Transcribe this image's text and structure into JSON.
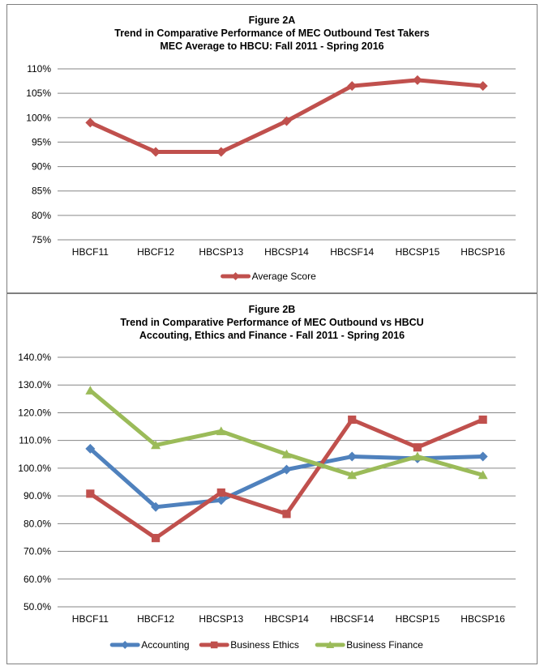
{
  "colors": {
    "average": "#C0504D",
    "accounting": "#4F81BD",
    "ethics": "#C0504D",
    "finance": "#9BBB59",
    "grid": "#868686"
  },
  "chart_data": [
    {
      "type": "line",
      "figure_label": "Figure 2A",
      "title": "Trend in Comparative Performance of MEC Outbound Test Takers",
      "subtitle": "MEC Average to HBCU: Fall 2011 - Spring 2016",
      "categories": [
        "HBCF11",
        "HBCF12",
        "HBCSP13",
        "HBCSP14",
        "HBCSF14",
        "HBCSP15",
        "HBCSP16"
      ],
      "ylim": [
        75,
        110
      ],
      "yticks": [
        "75%",
        "80%",
        "85%",
        "90%",
        "95%",
        "100%",
        "105%",
        "110%"
      ],
      "series": [
        {
          "name": "Average Score",
          "color": "#C0504D",
          "marker": "diamond",
          "values": [
            99,
            93,
            93,
            99.3,
            106.5,
            107.7,
            106.5
          ]
        }
      ],
      "legend": "bottom",
      "grid": true
    },
    {
      "type": "line",
      "figure_label": "Figure 2B",
      "title": "Trend in Comparative Performance of MEC Outbound vs HBCU",
      "subtitle": "Accouting, Ethics and Finance - Fall 2011 - Spring 2016",
      "categories": [
        "HBCF11",
        "HBCF12",
        "HBCSP13",
        "HBCSP14",
        "HBCSF14",
        "HBCSP15",
        "HBCSP16"
      ],
      "ylim": [
        50,
        140
      ],
      "yticks": [
        "50.0%",
        "60.0%",
        "70.0%",
        "80.0%",
        "90.0%",
        "100.0%",
        "110.0%",
        "120.0%",
        "130.0%",
        "140.0%"
      ],
      "series": [
        {
          "name": "Accounting",
          "color": "#4F81BD",
          "marker": "diamond",
          "values": [
            107,
            86,
            88.5,
            99.5,
            104.2,
            103.5,
            104.2
          ]
        },
        {
          "name": "Business Ethics",
          "color": "#C0504D",
          "marker": "square",
          "values": [
            90.8,
            74.8,
            91.2,
            83.5,
            117.5,
            107.5,
            117.5
          ]
        },
        {
          "name": "Business Finance",
          "color": "#9BBB59",
          "marker": "triangle",
          "values": [
            128,
            108.3,
            113.3,
            105,
            97.5,
            104.2,
            97.5
          ]
        }
      ],
      "legend": "bottom",
      "grid": true
    }
  ]
}
